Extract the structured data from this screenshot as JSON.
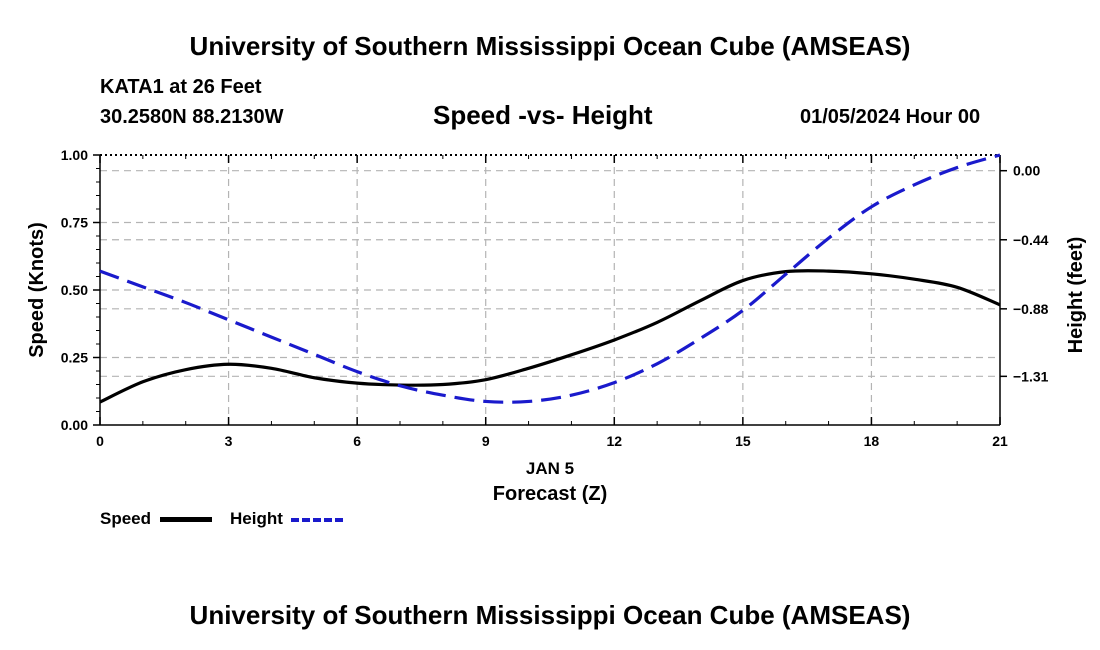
{
  "page": {
    "title": "University of Southern Mississippi Ocean Cube (AMSEAS)",
    "station": "KATA1 at 26 Feet",
    "coords": "30.2580N  88.2130W",
    "date_label": "01/05/2024 Hour 00",
    "footer_title": "University of Southern Mississippi Ocean Cube (AMSEAS)"
  },
  "colors": {
    "speed": "#000000",
    "height": "#1a1acc",
    "grid": "#b4b4b4"
  },
  "chart_data": {
    "type": "line",
    "title": "Speed -vs- Height",
    "xlabel": "Forecast (Z)",
    "xlabel_date": "JAN 5",
    "ylabel_left": "Speed (Knots)",
    "ylabel_right": "Height (feet)",
    "xlim": [
      0,
      21
    ],
    "ylim_left": [
      0,
      1
    ],
    "ylim_right": [
      -1.62,
      0.1
    ],
    "x_ticks": [
      0,
      3,
      6,
      9,
      12,
      15,
      18,
      21
    ],
    "x_tick_labels": [
      "0",
      "3",
      "6",
      "9",
      "12",
      "15",
      "18",
      "21"
    ],
    "y_left_ticks": [
      0,
      0.25,
      0.5,
      0.75,
      1.0
    ],
    "y_left_tick_labels": [
      "0.00",
      "0.25",
      "0.50",
      "0.75",
      "1.00"
    ],
    "y_right_ticks": [
      0.0,
      -0.44,
      -0.88,
      -1.31
    ],
    "y_right_tick_labels": [
      "0.00",
      "−0.44",
      "−0.88",
      "−1.31"
    ],
    "grid": true,
    "legend": {
      "position": "bottom-left",
      "entries": [
        "Speed",
        "Height"
      ]
    },
    "series": [
      {
        "name": "Speed",
        "axis": "left",
        "style": "solid",
        "x": [
          0,
          1,
          2,
          3,
          4,
          5,
          6,
          7,
          8,
          9,
          10,
          11,
          12,
          13,
          14,
          15,
          16,
          17,
          18,
          19,
          20,
          21
        ],
        "values": [
          0.085,
          0.16,
          0.205,
          0.225,
          0.21,
          0.175,
          0.155,
          0.148,
          0.15,
          0.168,
          0.21,
          0.26,
          0.315,
          0.38,
          0.46,
          0.535,
          0.568,
          0.57,
          0.56,
          0.54,
          0.51,
          0.445
        ]
      },
      {
        "name": "Height",
        "axis": "right",
        "style": "dashed",
        "x": [
          0,
          1,
          2,
          3,
          4,
          5,
          6,
          7,
          8,
          9,
          10,
          11,
          12,
          13,
          14,
          15,
          16,
          17,
          18,
          19,
          20,
          21
        ],
        "values": [
          -0.64,
          -0.74,
          -0.84,
          -0.95,
          -1.06,
          -1.17,
          -1.28,
          -1.37,
          -1.43,
          -1.47,
          -1.47,
          -1.43,
          -1.35,
          -1.23,
          -1.07,
          -0.89,
          -0.66,
          -0.43,
          -0.23,
          -0.09,
          0.02,
          0.1
        ]
      }
    ]
  }
}
